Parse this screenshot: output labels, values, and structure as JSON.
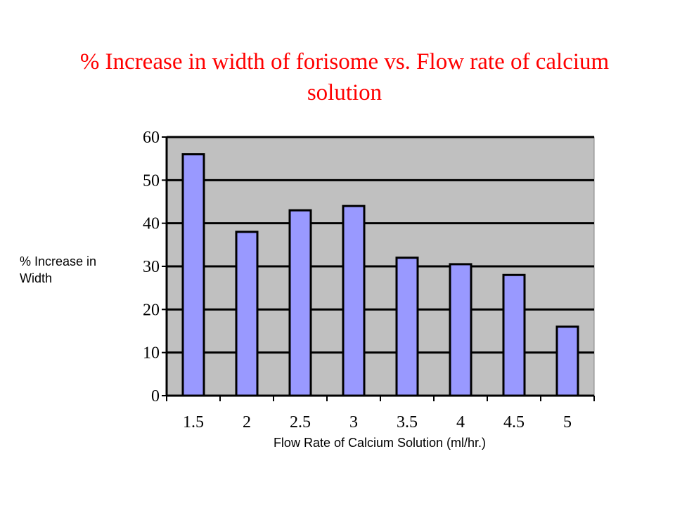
{
  "chart_data": {
    "type": "bar",
    "title": "% Increase in width of forisome vs. Flow rate of calcium solution",
    "xlabel": "Flow Rate of Calcium Solution (ml/hr.)",
    "ylabel": "% Increase in Width",
    "categories": [
      "1.5",
      "2",
      "2.5",
      "3",
      "3.5",
      "4",
      "4.5",
      "5"
    ],
    "values": [
      56,
      38,
      43,
      44,
      32,
      30.5,
      28,
      16
    ],
    "ylim": [
      0,
      60
    ],
    "yticks": [
      "0",
      "10",
      "20",
      "30",
      "40",
      "50",
      "60"
    ],
    "grid": true,
    "colors": {
      "bar": "#9999ff",
      "bar_edge": "#000000",
      "plot_bg": "#c0c0c0",
      "title": "#ff0000"
    }
  }
}
